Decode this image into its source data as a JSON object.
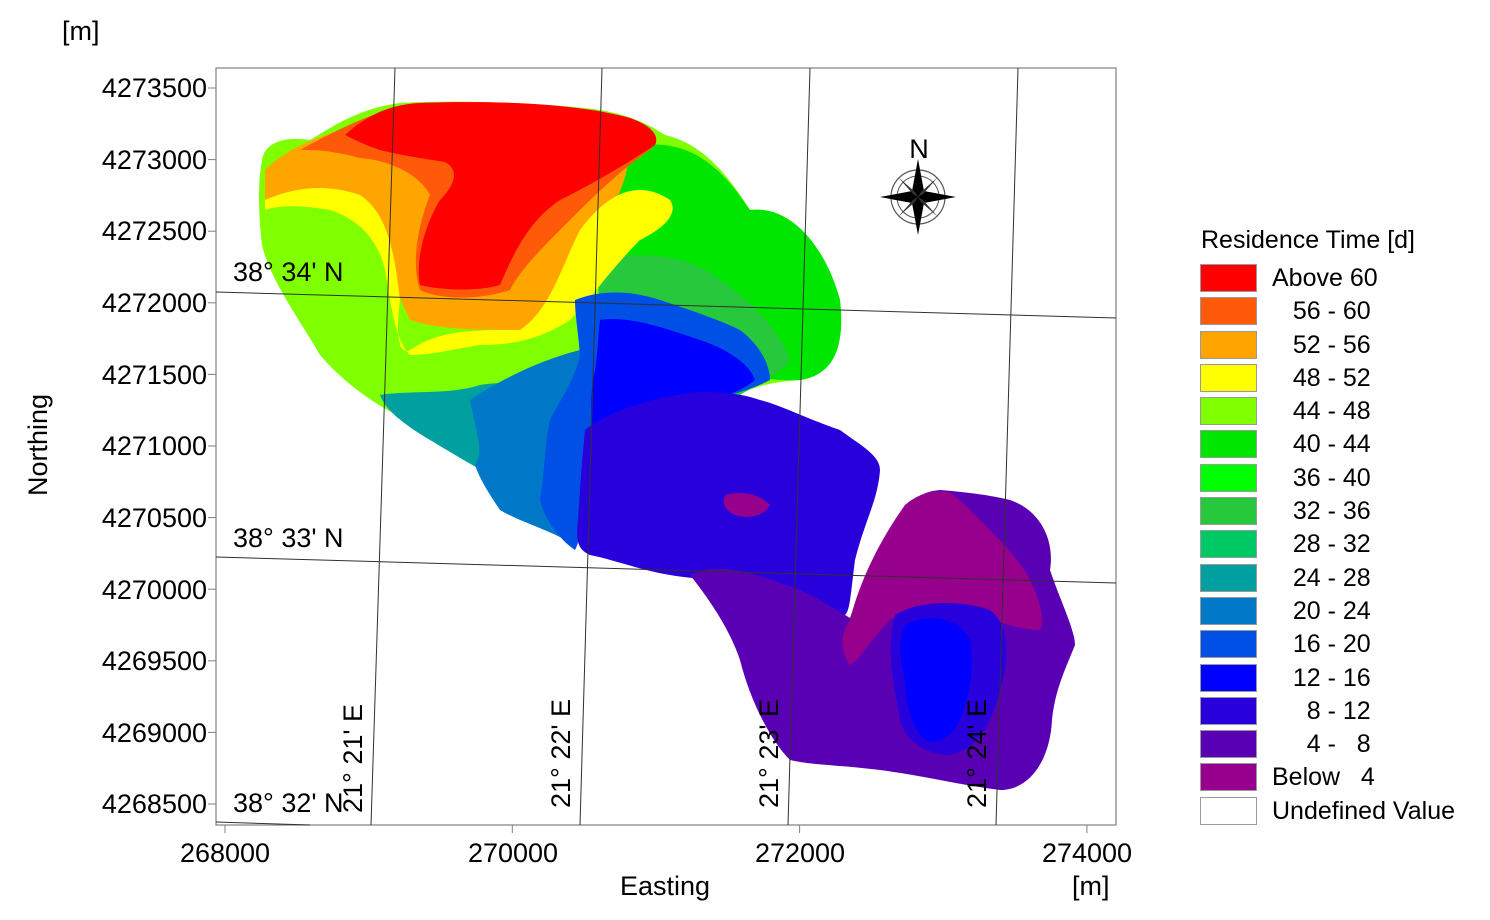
{
  "map": {
    "units_top_label": "[m]",
    "units_bottom_label": "[m]",
    "x_axis_title": "Easting",
    "y_axis_title": "Northing",
    "x_ticks": [
      "268000",
      "270000",
      "272000",
      "274000"
    ],
    "y_ticks": [
      "4273500",
      "4273000",
      "4272500",
      "4272000",
      "4271500",
      "4271000",
      "4270500",
      "4270000",
      "4269500",
      "4269000",
      "4268500"
    ],
    "latitude_labels": [
      "38° 34' N",
      "38° 33' N",
      "38° 32' N"
    ],
    "longitude_labels": [
      "21° 21' E",
      "21° 22' E",
      "21° 23' E",
      "21° 24' E"
    ],
    "north_arrow_label": "N"
  },
  "legend": {
    "title": "Residence Time [d]",
    "items": [
      {
        "label": "Above 60",
        "color": "#ff0000"
      },
      {
        "label": "   56 - 60",
        "color": "#ff5a0a"
      },
      {
        "label": "   52 - 56",
        "color": "#ffa500"
      },
      {
        "label": "   48 - 52",
        "color": "#ffff00"
      },
      {
        "label": "   44 - 48",
        "color": "#80ff00"
      },
      {
        "label": "   40 - 44",
        "color": "#00e600"
      },
      {
        "label": "   36 - 40",
        "color": "#00ff00"
      },
      {
        "label": "   32 - 36",
        "color": "#28c83c"
      },
      {
        "label": "   28 - 32",
        "color": "#00c864"
      },
      {
        "label": "   24 - 28",
        "color": "#00a0a0"
      },
      {
        "label": "   20 - 24",
        "color": "#0078c8"
      },
      {
        "label": "   16 - 20",
        "color": "#0050e6"
      },
      {
        "label": "   12 - 16",
        "color": "#0000ff"
      },
      {
        "label": "     8 - 12",
        "color": "#2800dc"
      },
      {
        "label": "     4 -   8",
        "color": "#5a00b4"
      },
      {
        "label": "Below   4",
        "color": "#96008c"
      },
      {
        "label": "Undefined Value",
        "color": "#ffffff"
      }
    ]
  }
}
